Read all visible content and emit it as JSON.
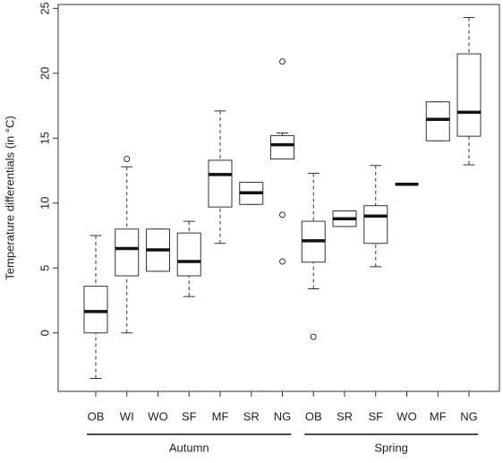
{
  "chart_data": {
    "type": "box",
    "y_label": "Temperature differentials (in °C)",
    "ylim": [
      -4.5,
      25.3
    ],
    "yticks": [
      0,
      5,
      10,
      15,
      20,
      25
    ],
    "groups": [
      {
        "name": "Autumn",
        "categories": [
          "OB",
          "WI",
          "WO",
          "SF",
          "MF",
          "SR",
          "NG"
        ],
        "boxes": [
          {
            "min": -3.5,
            "q1": 0,
            "median": 1.65,
            "q3": 3.6,
            "max": 7.5,
            "outliers": []
          },
          {
            "min": 0,
            "q1": 4.4,
            "median": 6.5,
            "q3": 8.0,
            "max": 12.8,
            "outliers": [
              13.4
            ]
          },
          {
            "min": 4.75,
            "q1": 4.75,
            "median": 6.4,
            "q3": 8.0,
            "max": 8.0,
            "outliers": []
          },
          {
            "min": 2.8,
            "q1": 4.4,
            "median": 5.5,
            "q3": 7.7,
            "max": 8.6,
            "outliers": []
          },
          {
            "min": 6.9,
            "q1": 9.7,
            "median": 12.2,
            "q3": 13.3,
            "max": 17.1,
            "outliers": []
          },
          {
            "min": 9.9,
            "q1": 9.9,
            "median": 10.8,
            "q3": 11.6,
            "max": 11.6,
            "outliers": []
          },
          {
            "min": 13.4,
            "q1": 13.4,
            "median": 14.5,
            "q3": 15.2,
            "max": 15.4,
            "outliers": [
              20.9,
              9.1,
              5.5
            ]
          }
        ]
      },
      {
        "name": "Spring",
        "categories": [
          "OB",
          "SR",
          "SF",
          "WO",
          "MF",
          "NG"
        ],
        "boxes": [
          {
            "min": 3.4,
            "q1": 5.45,
            "median": 7.1,
            "q3": 8.6,
            "max": 12.3,
            "outliers": [
              -0.3
            ]
          },
          {
            "min": 8.2,
            "q1": 8.2,
            "median": 8.8,
            "q3": 9.4,
            "max": 9.4,
            "outliers": []
          },
          {
            "min": 5.1,
            "q1": 6.9,
            "median": 9.0,
            "q3": 9.8,
            "max": 12.9,
            "outliers": []
          },
          {
            "min": 11.45,
            "q1": 11.45,
            "median": 11.45,
            "q3": 11.45,
            "max": 11.45,
            "outliers": []
          },
          {
            "min": 14.8,
            "q1": 14.8,
            "median": 16.45,
            "q3": 17.8,
            "max": 17.8,
            "outliers": []
          },
          {
            "min": 12.95,
            "q1": 15.15,
            "median": 17.0,
            "q3": 21.5,
            "max": 24.3,
            "outliers": []
          }
        ]
      }
    ]
  }
}
